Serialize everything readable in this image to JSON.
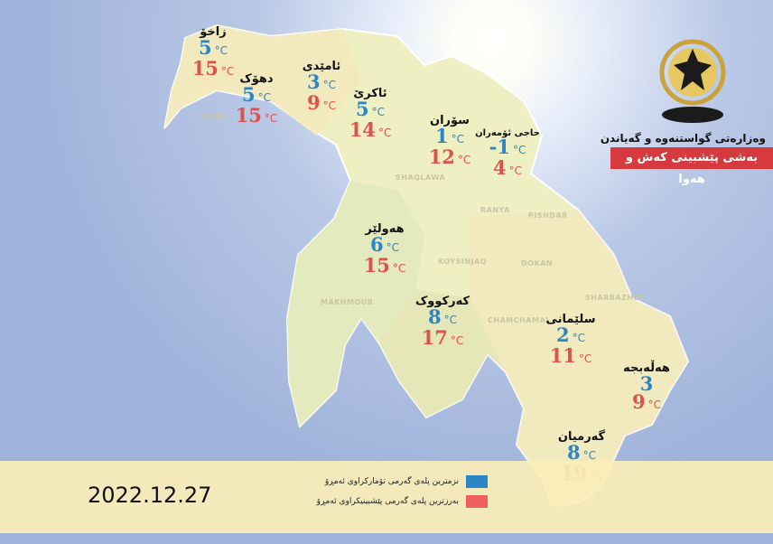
{
  "header": {
    "ministry": "وەزارەتی گواستنەوە و گەیاندن",
    "department": "بەشی پێشبینی کەش و هەوا"
  },
  "date": "2022.12.27",
  "unit": "°C",
  "colors": {
    "low": "#2a86c6",
    "high": "#e0504f",
    "department_bg": "#d63a3f",
    "map_fill": "#eef0c4"
  },
  "legend": [
    {
      "label": "نزمترین پلەی گەرمی تۆمارکراوی ئەمڕۆ",
      "color": "#2a86c6"
    },
    {
      "label": "بەرزترین پلەی گەرمی پێشبینیکراوی ئەمڕۆ",
      "color": "#f06060"
    }
  ],
  "cities": [
    {
      "name": "زاخۆ",
      "low": "5",
      "high": "15"
    },
    {
      "name": "دهۆک",
      "low": "5",
      "high": "15"
    },
    {
      "name": "ئامێدی",
      "low": "3",
      "high": "9"
    },
    {
      "name": "ئاکرێ",
      "low": "5",
      "high": "14"
    },
    {
      "name": "سۆران",
      "low": "1",
      "high": "12"
    },
    {
      "name": "حاجی ئۆمەران",
      "low": "-1",
      "high": "4"
    },
    {
      "name": "هەولێر",
      "low": "6",
      "high": "15"
    },
    {
      "name": "کەرکووک",
      "low": "8",
      "high": "17"
    },
    {
      "name": "سلێمانی",
      "low": "2",
      "high": "11"
    },
    {
      "name": "هەڵەبجە",
      "low": "3",
      "high": "9"
    },
    {
      "name": "گەرمیان",
      "low": "8",
      "high": "19"
    }
  ],
  "regions": [
    "SEMEL",
    "SHAQLAWA",
    "RANYA",
    "PISHDAR",
    "KOYSINJAQ",
    "DOKAN",
    "SHARBAZHER",
    "CHAMCHAMAL",
    "MAKHMOUR"
  ]
}
